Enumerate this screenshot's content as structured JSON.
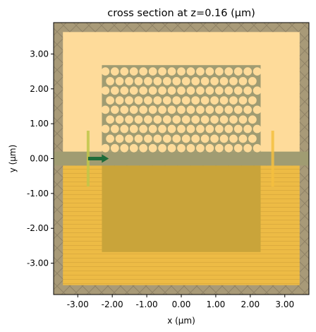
{
  "chart_data": {
    "type": "heatmap",
    "title": "cross section at z=0.16 (μm)",
    "xlabel": "x (μm)",
    "ylabel": "y (μm)",
    "xlim": [
      -3.7,
      3.7
    ],
    "ylim": [
      -3.9,
      3.9
    ],
    "xticks": [
      -3,
      -2,
      -1,
      0,
      1,
      2,
      3
    ],
    "yticks": [
      -3,
      -2,
      -1,
      0,
      1,
      2,
      3
    ],
    "xtick_labels": [
      "-3.00",
      "-2.00",
      "-1.00",
      "0.00",
      "1.00",
      "2.00",
      "3.00"
    ],
    "ytick_labels": [
      "-3.00",
      "-2.00",
      "-1.00",
      "0.00",
      "1.00",
      "2.00",
      "3.00"
    ],
    "pml_thickness": 0.27,
    "regions": [
      {
        "name": "upper-cladding",
        "x": [
          -3.43,
          3.43
        ],
        "y": [
          0.0,
          3.63
        ],
        "color": "#fedb9a"
      },
      {
        "name": "lower-substrate",
        "x": [
          -3.43,
          3.43
        ],
        "y": [
          -3.63,
          -0.2
        ],
        "color": "#edbb45"
      },
      {
        "name": "slab",
        "x": [
          -3.7,
          3.7
        ],
        "y": [
          -0.2,
          0.2
        ],
        "color": "#a09c72"
      },
      {
        "name": "photonic-crystal-slab",
        "x": [
          -2.3,
          2.3
        ],
        "y": [
          0.2,
          2.68
        ],
        "color": "#a09c72"
      },
      {
        "name": "substrate-block",
        "x": [
          -2.3,
          2.3
        ],
        "y": [
          -2.68,
          -0.2
        ],
        "color": "#c9a43a"
      }
    ],
    "holes": {
      "radius": 0.12,
      "rows_y": [
        2.5,
        2.22,
        1.95,
        1.67,
        1.4,
        1.12,
        0.85,
        0.57,
        0.3
      ],
      "x_start": -2.2,
      "pitch": 0.275,
      "x_end": 2.2
    },
    "sources": [
      {
        "name": "mode-source",
        "x": -2.7,
        "y": [
          -0.8,
          0.8
        ],
        "color": "#bfc74a"
      },
      {
        "name": "flux-monitor",
        "x": 2.65,
        "y": [
          -0.8,
          0.8
        ],
        "color": "#f4c03e"
      }
    ],
    "arrow": {
      "x": [
        -2.7,
        -2.1
      ],
      "y": 0.0,
      "color": "#1e6b3a"
    }
  }
}
